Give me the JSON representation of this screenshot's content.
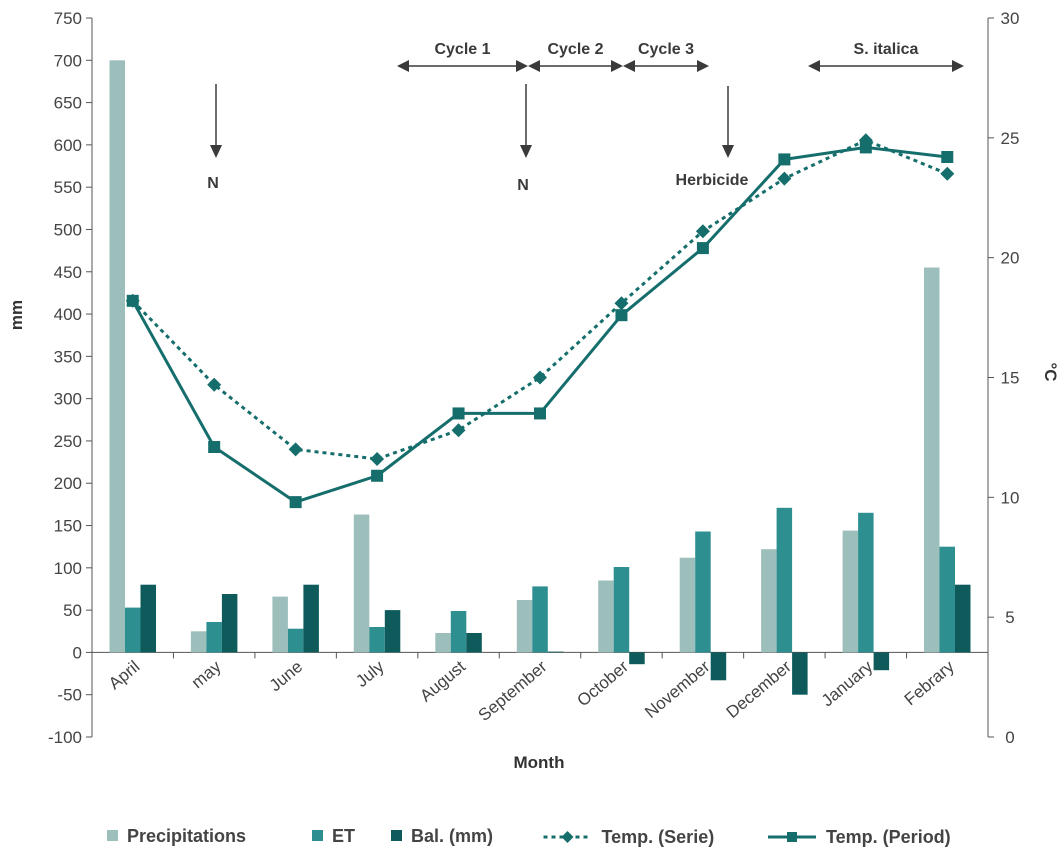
{
  "chart_data": {
    "type": "bar",
    "xlabel": "Month",
    "ylabel": "mm",
    "y2label": "°C",
    "ylim": [
      -100,
      750
    ],
    "yticks": [
      -100,
      -50,
      0,
      50,
      100,
      150,
      200,
      250,
      300,
      350,
      400,
      450,
      500,
      550,
      600,
      650,
      700,
      750
    ],
    "y2lim": [
      0,
      30
    ],
    "y2ticks": [
      0,
      5,
      10,
      15,
      20,
      25,
      30
    ],
    "categories": [
      "April",
      "may",
      "June",
      "July",
      "August",
      "September",
      "October",
      "November",
      "December",
      "January",
      "Febrary"
    ],
    "bar_series": [
      {
        "name": "Precipitations",
        "color": "#9dbfbc",
        "values": [
          700,
          25,
          66,
          163,
          23,
          62,
          85,
          112,
          122,
          144,
          455
        ]
      },
      {
        "name": "ET",
        "color": "#2e8f91",
        "values": [
          53,
          36,
          28,
          30,
          49,
          78,
          101,
          143,
          171,
          165,
          125
        ]
      },
      {
        "name": "Bal. (mm)",
        "color": "#0f5b5b",
        "values": [
          80,
          69,
          80,
          50,
          23,
          1,
          -14,
          -33,
          -50,
          -21,
          80
        ]
      }
    ],
    "line_series": [
      {
        "name": "Temp. (Serie)",
        "axis": "right",
        "style": "dotted",
        "marker": "diamond",
        "color": "#156e6c",
        "values": [
          18.2,
          14.7,
          12.0,
          11.6,
          12.8,
          15.0,
          18.1,
          21.1,
          23.3,
          24.9,
          23.5
        ]
      },
      {
        "name": "Temp. (Period)",
        "axis": "right",
        "style": "solid",
        "marker": "square",
        "color": "#156e6c",
        "values": [
          18.2,
          12.1,
          9.8,
          10.9,
          13.5,
          13.5,
          17.6,
          20.4,
          24.1,
          24.6,
          24.2
        ]
      }
    ],
    "annotations": {
      "periods": [
        {
          "label": "Cycle 1",
          "from": "July",
          "to": "September"
        },
        {
          "label": "Cycle 2",
          "from": "September",
          "to": "October"
        },
        {
          "label": "Cycle 3",
          "from": "October",
          "to": "November"
        },
        {
          "label": "S. italica",
          "from": "December",
          "to": "Febrary"
        }
      ],
      "events": [
        {
          "label": "N",
          "month": "may"
        },
        {
          "label": "N",
          "month": "September"
        },
        {
          "label": "Herbicide",
          "month": "November"
        }
      ]
    },
    "grid": false,
    "legend_position": "bottom"
  }
}
